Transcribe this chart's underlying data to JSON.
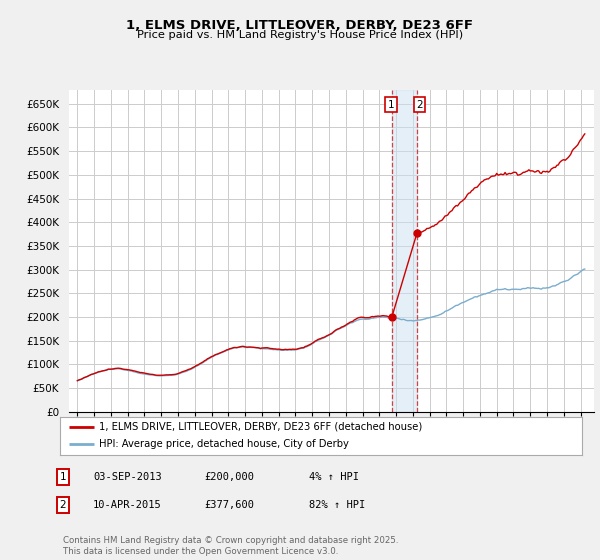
{
  "title": "1, ELMS DRIVE, LITTLEOVER, DERBY, DE23 6FF",
  "subtitle": "Price paid vs. HM Land Registry's House Price Index (HPI)",
  "ylim": [
    0,
    680000
  ],
  "yticks": [
    0,
    50000,
    100000,
    150000,
    200000,
    250000,
    300000,
    350000,
    400000,
    450000,
    500000,
    550000,
    600000,
    650000
  ],
  "ytick_labels": [
    "£0",
    "£50K",
    "£100K",
    "£150K",
    "£200K",
    "£250K",
    "£300K",
    "£350K",
    "£400K",
    "£450K",
    "£500K",
    "£550K",
    "£600K",
    "£650K"
  ],
  "line1_color": "#cc0000",
  "line2_color": "#7aadcf",
  "background_color": "#f0f0f0",
  "plot_bg_color": "#ffffff",
  "grid_color": "#cccccc",
  "sale1_year": 2013.75,
  "sale1_price": 200000,
  "sale2_year": 2015.25,
  "sale2_price": 377600,
  "legend_label1": "1, ELMS DRIVE, LITTLEOVER, DERBY, DE23 6FF (detached house)",
  "legend_label2": "HPI: Average price, detached house, City of Derby",
  "footer": "Contains HM Land Registry data © Crown copyright and database right 2025.\nThis data is licensed under the Open Government Licence v3.0.",
  "xlim_left": 1994.5,
  "xlim_right": 2025.8
}
